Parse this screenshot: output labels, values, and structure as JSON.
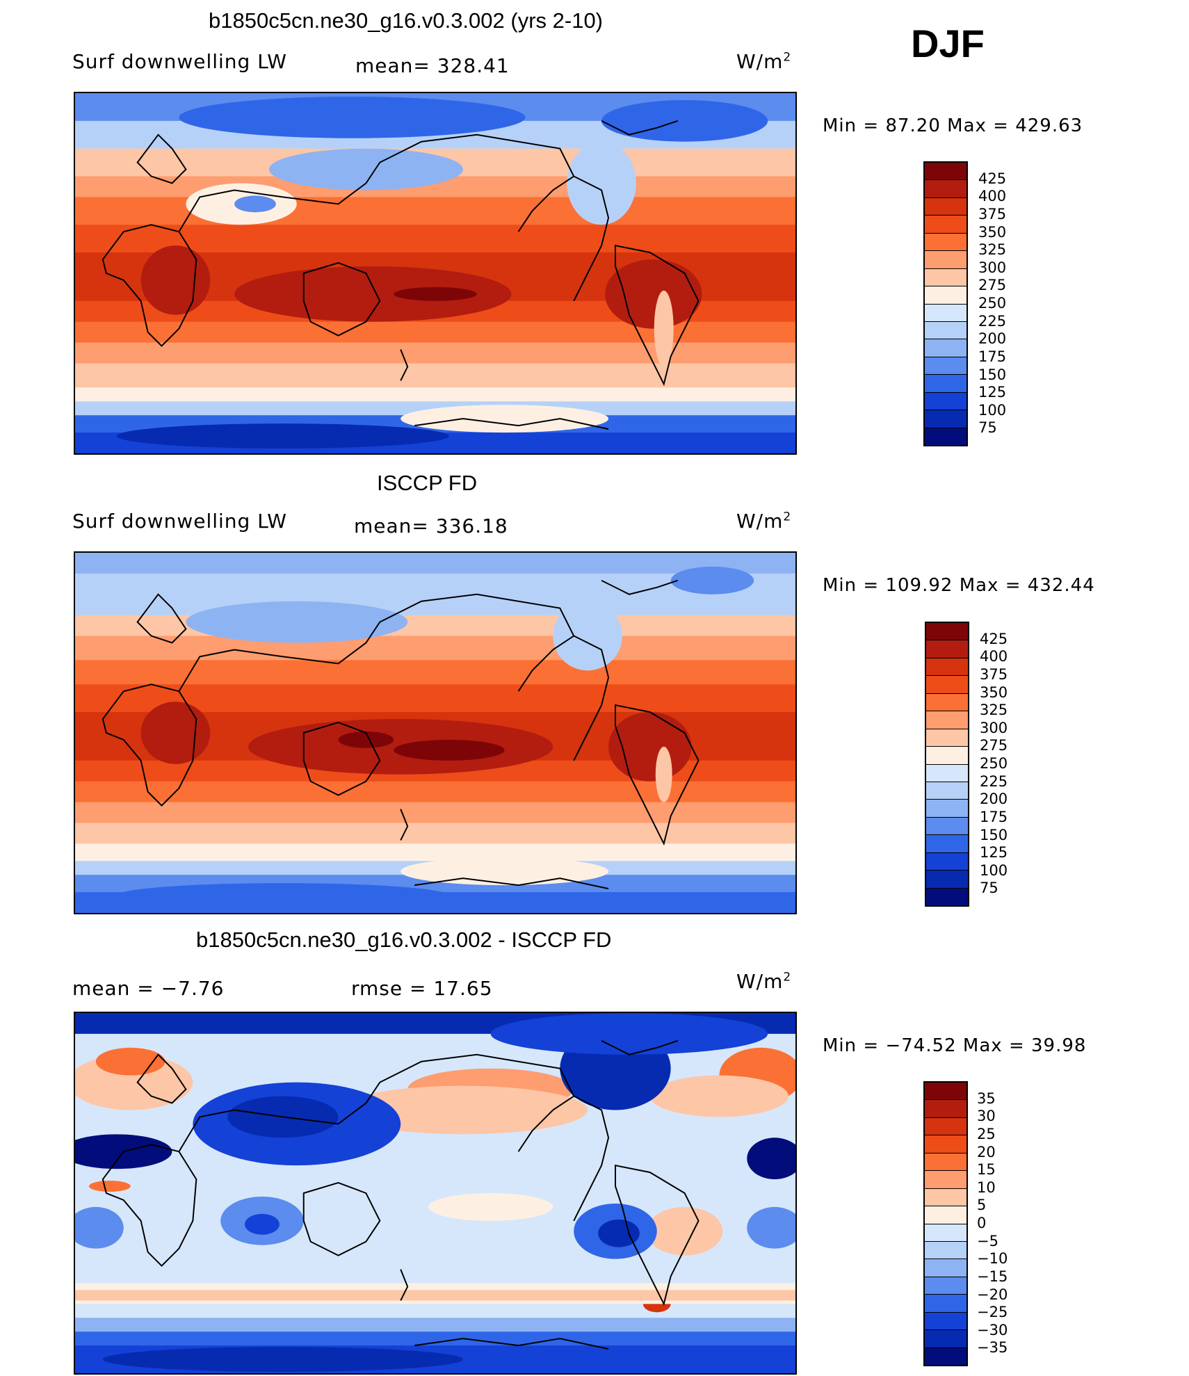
{
  "figure": {
    "season": "DJF"
  },
  "panels": [
    {
      "title": "b1850c5cn.ne30_g16.v0.3.002 (yrs 2-10)",
      "left_label": "Surf downwelling LW",
      "center_label": "mean= 328.41",
      "units": "W/m",
      "units_sup": "2",
      "minmax": "Min =   87.20 Max = 429.63",
      "colorbar_levels": [
        "425",
        "400",
        "375",
        "350",
        "325",
        "300",
        "275",
        "250",
        "225",
        "200",
        "175",
        "150",
        "125",
        "100",
        "75"
      ],
      "colorbar_colors": [
        "#7e0507",
        "#b21d10",
        "#d5340e",
        "#ee4d19",
        "#fb7034",
        "#fd9d70",
        "#fdc6a6",
        "#fdf0e3",
        "#d6e7fb",
        "#b6d1f8",
        "#8db3f3",
        "#5b8cee",
        "#2f66e8",
        "#1441d6",
        "#062bb1",
        "#020d7b"
      ]
    },
    {
      "title": "ISCCP FD",
      "left_label": "Surf downwelling LW",
      "center_label": "mean= 336.18",
      "units": "W/m",
      "units_sup": "2",
      "minmax": "Min = 109.92 Max = 432.44",
      "colorbar_levels": [
        "425",
        "400",
        "375",
        "350",
        "325",
        "300",
        "275",
        "250",
        "225",
        "200",
        "175",
        "150",
        "125",
        "100",
        "75"
      ],
      "colorbar_colors": [
        "#7e0507",
        "#b21d10",
        "#d5340e",
        "#ee4d19",
        "#fb7034",
        "#fd9d70",
        "#fdc6a6",
        "#fdf0e3",
        "#d6e7fb",
        "#b6d1f8",
        "#8db3f3",
        "#5b8cee",
        "#2f66e8",
        "#1441d6",
        "#062bb1",
        "#020d7b"
      ]
    },
    {
      "title": "b1850c5cn.ne30_g16.v0.3.002 - ISCCP FD",
      "left_label": "mean =   −7.76",
      "center_label": "rmse =   17.65",
      "units": "W/m",
      "units_sup": "2",
      "minmax": "Min = −74.52 Max =   39.98",
      "colorbar_levels": [
        "35",
        "30",
        "25",
        "20",
        "15",
        "10",
        "5",
        "0",
        "−5",
        "−10",
        "−15",
        "−20",
        "−25",
        "−30",
        "−35"
      ],
      "colorbar_colors": [
        "#7e0507",
        "#b21d10",
        "#d5340e",
        "#ee4d19",
        "#fb7034",
        "#fd9d70",
        "#fdc6a6",
        "#fdf0e3",
        "#d6e7fb",
        "#b6d1f8",
        "#8db3f3",
        "#5b8cee",
        "#2f66e8",
        "#1441d6",
        "#062bb1",
        "#020d7b"
      ]
    }
  ]
}
